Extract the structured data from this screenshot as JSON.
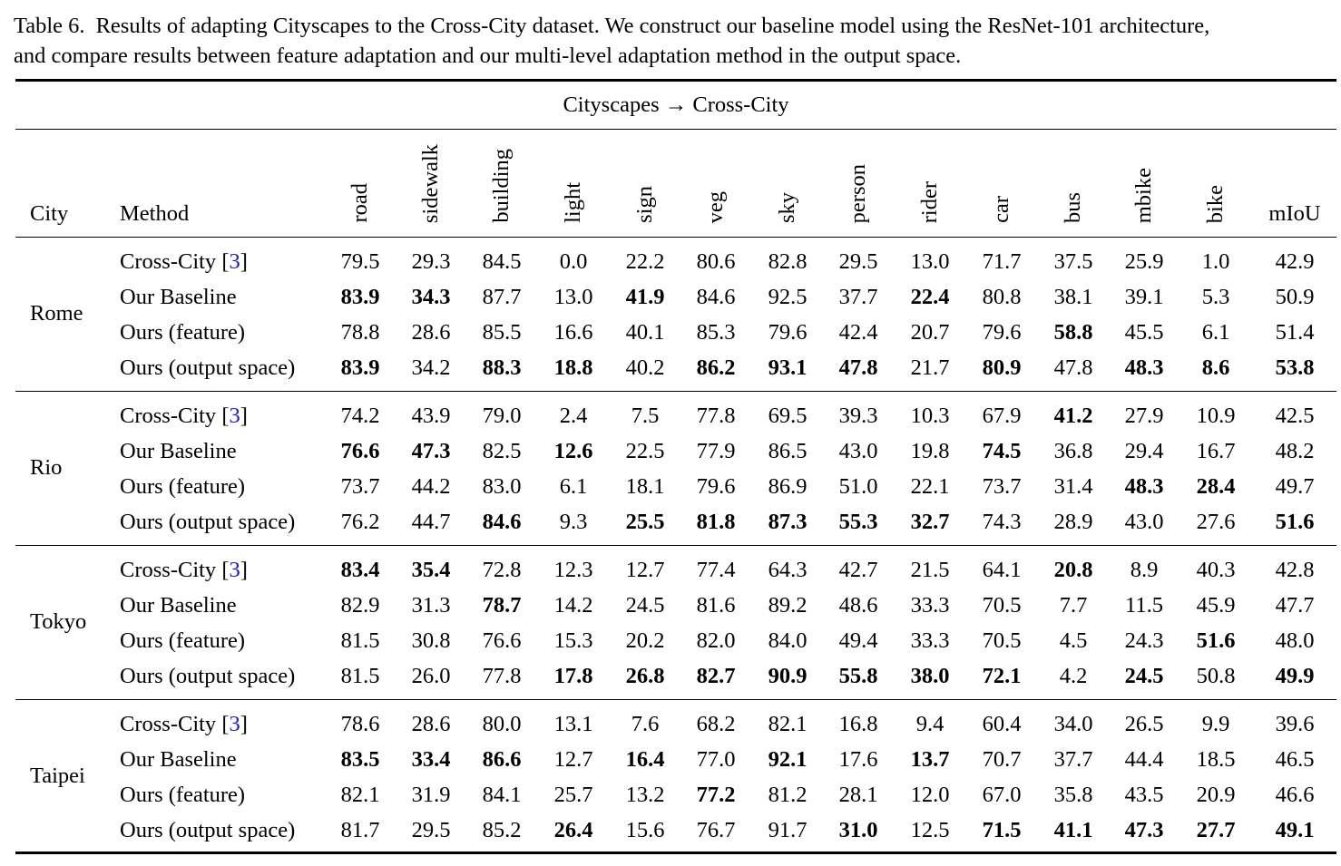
{
  "caption": {
    "label": "Table 6.",
    "line1": "Results of adapting Cityscapes to the Cross-City dataset. We construct our baseline model using the ResNet-101 architecture,",
    "line2": "and compare results between feature adaptation and our multi-level adaptation method in the output space."
  },
  "table": {
    "supertitle": "Cityscapes → Cross-City",
    "header_city": "City",
    "header_method": "Method",
    "columns": [
      "road",
      "sidewalk",
      "building",
      "light",
      "sign",
      "veg",
      "sky",
      "person",
      "rider",
      "car",
      "bus",
      "mbike",
      "bike"
    ],
    "last_column": "mIoU",
    "groups": [
      {
        "city": "Rome",
        "rows": [
          {
            "method": "Cross-City",
            "ref": "3",
            "values": [
              "79.5",
              "29.3",
              "84.5",
              "0.0",
              "22.2",
              "80.6",
              "82.8",
              "29.5",
              "13.0",
              "71.7",
              "37.5",
              "25.9",
              "1.0",
              "42.9"
            ],
            "bold": []
          },
          {
            "method": "Our Baseline",
            "ref": "",
            "values": [
              "83.9",
              "34.3",
              "87.7",
              "13.0",
              "41.9",
              "84.6",
              "92.5",
              "37.7",
              "22.4",
              "80.8",
              "38.1",
              "39.1",
              "5.3",
              "50.9"
            ],
            "bold": [
              0,
              1,
              4,
              8
            ]
          },
          {
            "method": "Ours (feature)",
            "ref": "",
            "values": [
              "78.8",
              "28.6",
              "85.5",
              "16.6",
              "40.1",
              "85.3",
              "79.6",
              "42.4",
              "20.7",
              "79.6",
              "58.8",
              "45.5",
              "6.1",
              "51.4"
            ],
            "bold": [
              10
            ]
          },
          {
            "method": "Ours (output space)",
            "ref": "",
            "values": [
              "83.9",
              "34.2",
              "88.3",
              "18.8",
              "40.2",
              "86.2",
              "93.1",
              "47.8",
              "21.7",
              "80.9",
              "47.8",
              "48.3",
              "8.6",
              "53.8"
            ],
            "bold": [
              0,
              2,
              3,
              5,
              6,
              7,
              9,
              11,
              12,
              13
            ]
          }
        ]
      },
      {
        "city": "Rio",
        "rows": [
          {
            "method": "Cross-City",
            "ref": "3",
            "values": [
              "74.2",
              "43.9",
              "79.0",
              "2.4",
              "7.5",
              "77.8",
              "69.5",
              "39.3",
              "10.3",
              "67.9",
              "41.2",
              "27.9",
              "10.9",
              "42.5"
            ],
            "bold": [
              10
            ]
          },
          {
            "method": "Our Baseline",
            "ref": "",
            "values": [
              "76.6",
              "47.3",
              "82.5",
              "12.6",
              "22.5",
              "77.9",
              "86.5",
              "43.0",
              "19.8",
              "74.5",
              "36.8",
              "29.4",
              "16.7",
              "48.2"
            ],
            "bold": [
              0,
              1,
              3,
              9
            ]
          },
          {
            "method": "Ours (feature)",
            "ref": "",
            "values": [
              "73.7",
              "44.2",
              "83.0",
              "6.1",
              "18.1",
              "79.6",
              "86.9",
              "51.0",
              "22.1",
              "73.7",
              "31.4",
              "48.3",
              "28.4",
              "49.7"
            ],
            "bold": [
              11,
              12
            ]
          },
          {
            "method": "Ours (output space)",
            "ref": "",
            "values": [
              "76.2",
              "44.7",
              "84.6",
              "9.3",
              "25.5",
              "81.8",
              "87.3",
              "55.3",
              "32.7",
              "74.3",
              "28.9",
              "43.0",
              "27.6",
              "51.6"
            ],
            "bold": [
              2,
              4,
              5,
              6,
              7,
              8,
              13
            ]
          }
        ]
      },
      {
        "city": "Tokyo",
        "rows": [
          {
            "method": "Cross-City",
            "ref": "3",
            "values": [
              "83.4",
              "35.4",
              "72.8",
              "12.3",
              "12.7",
              "77.4",
              "64.3",
              "42.7",
              "21.5",
              "64.1",
              "20.8",
              "8.9",
              "40.3",
              "42.8"
            ],
            "bold": [
              0,
              1,
              10
            ]
          },
          {
            "method": "Our Baseline",
            "ref": "",
            "values": [
              "82.9",
              "31.3",
              "78.7",
              "14.2",
              "24.5",
              "81.6",
              "89.2",
              "48.6",
              "33.3",
              "70.5",
              "7.7",
              "11.5",
              "45.9",
              "47.7"
            ],
            "bold": [
              2
            ]
          },
          {
            "method": "Ours (feature)",
            "ref": "",
            "values": [
              "81.5",
              "30.8",
              "76.6",
              "15.3",
              "20.2",
              "82.0",
              "84.0",
              "49.4",
              "33.3",
              "70.5",
              "4.5",
              "24.3",
              "51.6",
              "48.0"
            ],
            "bold": [
              12
            ]
          },
          {
            "method": "Ours (output space)",
            "ref": "",
            "values": [
              "81.5",
              "26.0",
              "77.8",
              "17.8",
              "26.8",
              "82.7",
              "90.9",
              "55.8",
              "38.0",
              "72.1",
              "4.2",
              "24.5",
              "50.8",
              "49.9"
            ],
            "bold": [
              3,
              4,
              5,
              6,
              7,
              8,
              9,
              11,
              13
            ]
          }
        ]
      },
      {
        "city": "Taipei",
        "rows": [
          {
            "method": "Cross-City",
            "ref": "3",
            "values": [
              "78.6",
              "28.6",
              "80.0",
              "13.1",
              "7.6",
              "68.2",
              "82.1",
              "16.8",
              "9.4",
              "60.4",
              "34.0",
              "26.5",
              "9.9",
              "39.6"
            ],
            "bold": []
          },
          {
            "method": "Our Baseline",
            "ref": "",
            "values": [
              "83.5",
              "33.4",
              "86.6",
              "12.7",
              "16.4",
              "77.0",
              "92.1",
              "17.6",
              "13.7",
              "70.7",
              "37.7",
              "44.4",
              "18.5",
              "46.5"
            ],
            "bold": [
              0,
              1,
              2,
              4,
              6,
              8
            ]
          },
          {
            "method": "Ours (feature)",
            "ref": "",
            "values": [
              "82.1",
              "31.9",
              "84.1",
              "25.7",
              "13.2",
              "77.2",
              "81.2",
              "28.1",
              "12.0",
              "67.0",
              "35.8",
              "43.5",
              "20.9",
              "46.6"
            ],
            "bold": [
              5
            ]
          },
          {
            "method": "Ours (output space)",
            "ref": "",
            "values": [
              "81.7",
              "29.5",
              "85.2",
              "26.4",
              "15.6",
              "76.7",
              "91.7",
              "31.0",
              "12.5",
              "71.5",
              "41.1",
              "47.3",
              "27.7",
              "49.1"
            ],
            "bold": [
              3,
              7,
              9,
              10,
              11,
              12,
              13
            ]
          }
        ]
      }
    ]
  }
}
